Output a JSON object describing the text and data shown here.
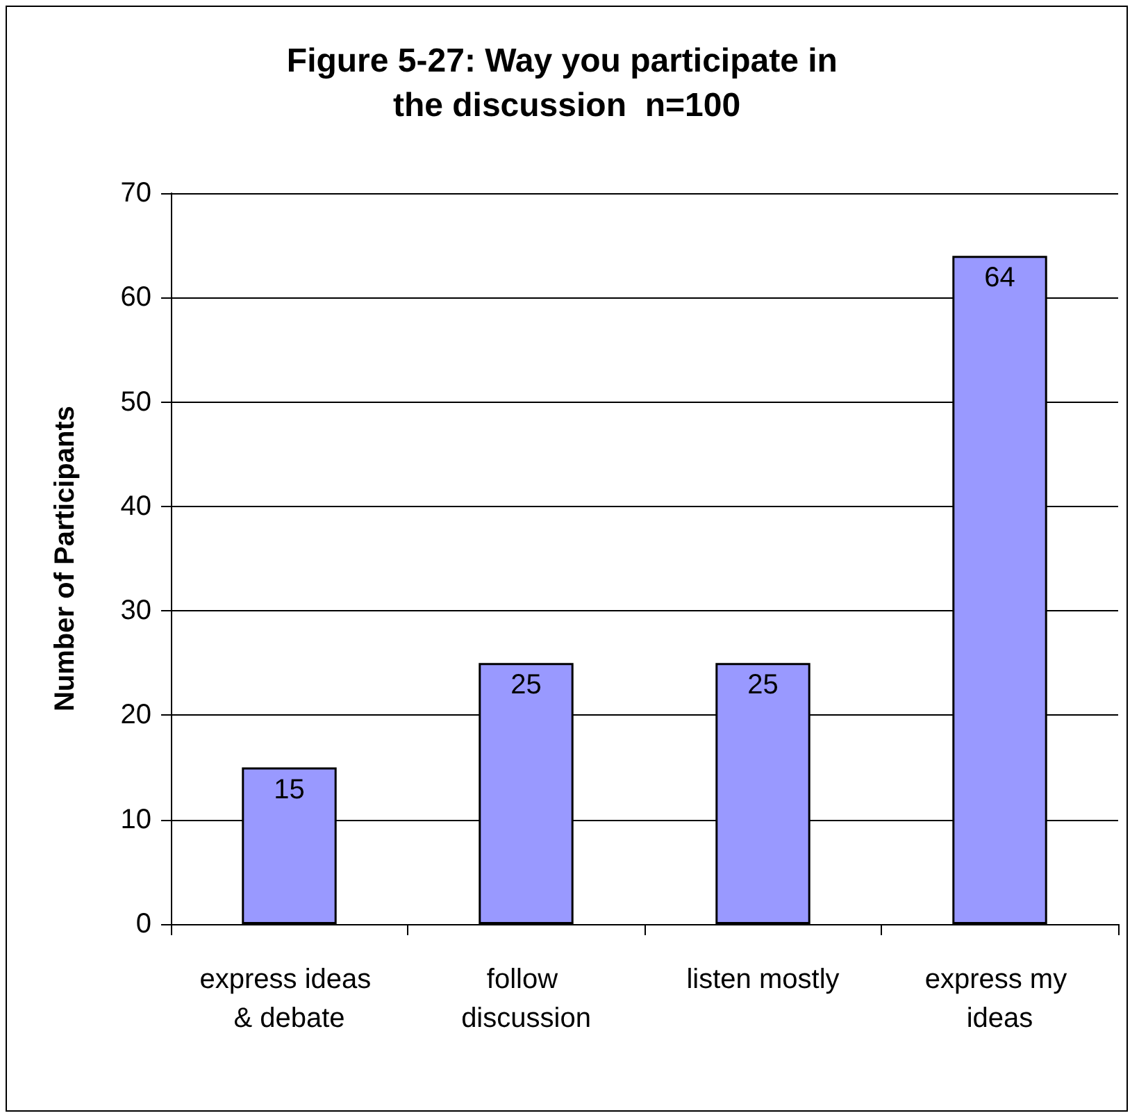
{
  "chart_data": {
    "type": "bar",
    "title": "Figure 5-27: Way you participate in the discussion  n=100",
    "ylabel": "Number of Participants",
    "categories": [
      "express ideas & debate",
      "follow discussion",
      "listen mostly",
      "express my ideas"
    ],
    "values": [
      15,
      25,
      25,
      64
    ],
    "color": "#9999ff",
    "ylim": [
      0,
      70
    ],
    "yticks": [
      0,
      10,
      20,
      30,
      40,
      50,
      60,
      70
    ],
    "grid": "y",
    "data_labels": true
  }
}
